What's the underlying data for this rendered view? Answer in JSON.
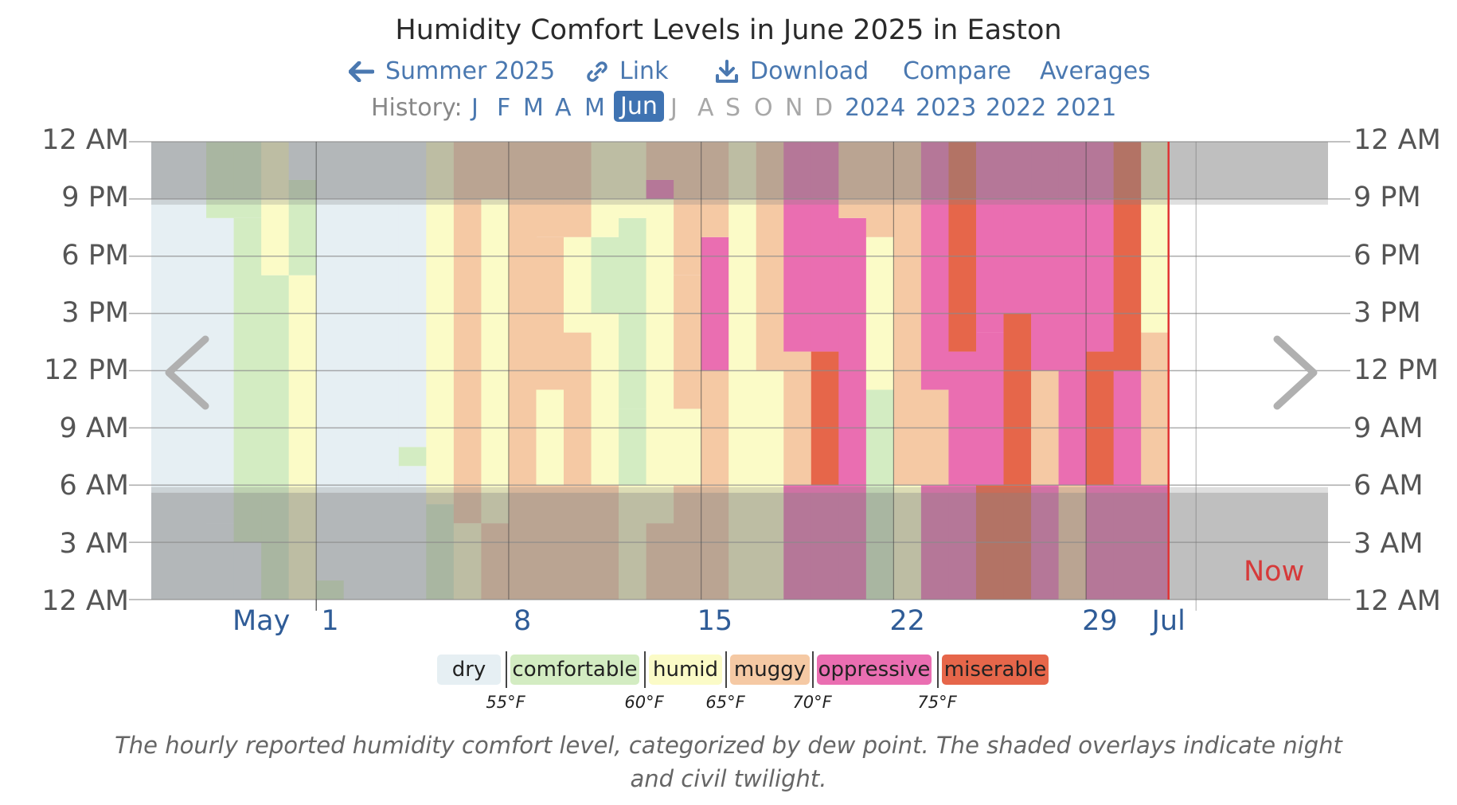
{
  "title": "Humidity Comfort Levels in June 2025 in Easton",
  "nav": [
    {
      "label": "Summer 2025",
      "icon": "arrow-left-icon"
    },
    {
      "label": "Link",
      "icon": "link-icon"
    },
    {
      "label": "Download",
      "icon": "download-icon"
    },
    {
      "label": "Compare",
      "icon": ""
    },
    {
      "label": "Averages",
      "icon": ""
    }
  ],
  "history": {
    "label": "History:",
    "months": [
      {
        "label": "J",
        "state": "link"
      },
      {
        "label": "F",
        "state": "link"
      },
      {
        "label": "M",
        "state": "link"
      },
      {
        "label": "A",
        "state": "link"
      },
      {
        "label": "M",
        "state": "link"
      },
      {
        "label": "Jun",
        "state": "selected"
      },
      {
        "label": "J",
        "state": "disabled"
      },
      {
        "label": "A",
        "state": "disabled"
      },
      {
        "label": "S",
        "state": "disabled"
      },
      {
        "label": "O",
        "state": "disabled"
      },
      {
        "label": "N",
        "state": "disabled"
      },
      {
        "label": "D",
        "state": "disabled"
      }
    ],
    "years": [
      "2024",
      "2023",
      "2022",
      "2021"
    ]
  },
  "chart_data": {
    "type": "heatmap",
    "x_unit": "day",
    "y_unit": "hour of day",
    "y_ticks": [
      "12 AM",
      "9 PM",
      "6 PM",
      "3 PM",
      "12 PM",
      "9 AM",
      "6 AM",
      "3 AM",
      "12 AM"
    ],
    "x_ticks": [
      {
        "label": "May",
        "day": -2.5
      },
      {
        "label": "1",
        "day": 0
      },
      {
        "label": "8",
        "day": 7
      },
      {
        "label": "15",
        "day": 14
      },
      {
        "label": "22",
        "day": 21
      },
      {
        "label": "29",
        "day": 28
      },
      {
        "label": "Jul",
        "day": 30.5
      }
    ],
    "x_range": [
      -6.5,
      36.3
    ],
    "data_range": [
      -6.5,
      31
    ],
    "now_label": "Now",
    "now_day": 30,
    "categories": [
      {
        "name": "dry",
        "color": "#e6eff3"
      },
      {
        "name": "comfortable",
        "color": "#d3ecc2"
      },
      {
        "name": "humid",
        "color": "#fbfbc7"
      },
      {
        "name": "muggy",
        "color": "#f5c9a4"
      },
      {
        "name": "oppressive",
        "color": "#ea6eb1"
      },
      {
        "name": "miserable",
        "color": "#e6664a"
      }
    ],
    "thresholds": [
      "55°F",
      "60°F",
      "65°F",
      "70°F",
      "75°F"
    ],
    "night_color": "#808080",
    "night_end_hour": 5.6,
    "night_start_hour": 21.0,
    "days": [
      {
        "day": -6,
        "blocks": [
          [
            0,
            24,
            0
          ]
        ]
      },
      {
        "day": -5,
        "blocks": [
          [
            0,
            24,
            0
          ]
        ]
      },
      {
        "day": -4,
        "blocks": [
          [
            0,
            4,
            0
          ],
          [
            4,
            20,
            0
          ],
          [
            20,
            24,
            1
          ]
        ]
      },
      {
        "day": -3,
        "blocks": [
          [
            0,
            3,
            0
          ],
          [
            3,
            20,
            1
          ],
          [
            20,
            24,
            1
          ]
        ]
      },
      {
        "day": -2,
        "blocks": [
          [
            0,
            6,
            1
          ],
          [
            6,
            17,
            1
          ],
          [
            17,
            24,
            2
          ]
        ]
      },
      {
        "day": -1,
        "blocks": [
          [
            0,
            6,
            2
          ],
          [
            6,
            17,
            2
          ],
          [
            17,
            22,
            1
          ],
          [
            22,
            24,
            0
          ]
        ]
      },
      {
        "day": 0,
        "blocks": [
          [
            0,
            1,
            1
          ],
          [
            1,
            24,
            0
          ]
        ]
      },
      {
        "day": 1,
        "blocks": [
          [
            0,
            24,
            0
          ]
        ]
      },
      {
        "day": 2,
        "blocks": [
          [
            0,
            24,
            0
          ]
        ]
      },
      {
        "day": 3,
        "blocks": [
          [
            0,
            7,
            0
          ],
          [
            7,
            8,
            1
          ],
          [
            8,
            24,
            0
          ]
        ]
      },
      {
        "day": 4,
        "blocks": [
          [
            0,
            5,
            1
          ],
          [
            5,
            21,
            2
          ],
          [
            21,
            24,
            2
          ]
        ]
      },
      {
        "day": 5,
        "blocks": [
          [
            0,
            4,
            2
          ],
          [
            4,
            21,
            3
          ],
          [
            21,
            24,
            3
          ]
        ]
      },
      {
        "day": 6,
        "blocks": [
          [
            0,
            4,
            3
          ],
          [
            4,
            21,
            2
          ],
          [
            21,
            24,
            3
          ]
        ]
      },
      {
        "day": 7,
        "blocks": [
          [
            0,
            24,
            3
          ]
        ]
      },
      {
        "day": 8,
        "blocks": [
          [
            0,
            6,
            3
          ],
          [
            6,
            11,
            2
          ],
          [
            11,
            19,
            3
          ],
          [
            19,
            24,
            3
          ]
        ]
      },
      {
        "day": 9,
        "blocks": [
          [
            0,
            6,
            3
          ],
          [
            6,
            14,
            3
          ],
          [
            14,
            19,
            2
          ],
          [
            19,
            24,
            3
          ]
        ]
      },
      {
        "day": 10,
        "blocks": [
          [
            0,
            6,
            3
          ],
          [
            6,
            15,
            2
          ],
          [
            15,
            19,
            1
          ],
          [
            19,
            24,
            2
          ]
        ]
      },
      {
        "day": 11,
        "blocks": [
          [
            0,
            6,
            2
          ],
          [
            6,
            10,
            1
          ],
          [
            10,
            20,
            1
          ],
          [
            20,
            24,
            2
          ]
        ]
      },
      {
        "day": 12,
        "blocks": [
          [
            0,
            4,
            3
          ],
          [
            4,
            21,
            2
          ],
          [
            21,
            22,
            4
          ],
          [
            22,
            24,
            3
          ]
        ]
      },
      {
        "day": 13,
        "blocks": [
          [
            0,
            6,
            3
          ],
          [
            6,
            10,
            2
          ],
          [
            10,
            17,
            3
          ],
          [
            17,
            24,
            3
          ]
        ]
      },
      {
        "day": 14,
        "blocks": [
          [
            0,
            6,
            3
          ],
          [
            6,
            12,
            3
          ],
          [
            12,
            19,
            4
          ],
          [
            19,
            24,
            3
          ]
        ]
      },
      {
        "day": 15,
        "blocks": [
          [
            0,
            24,
            2
          ]
        ]
      },
      {
        "day": 16,
        "blocks": [
          [
            0,
            6,
            2
          ],
          [
            6,
            12,
            2
          ],
          [
            12,
            24,
            3
          ]
        ]
      },
      {
        "day": 17,
        "blocks": [
          [
            0,
            6,
            4
          ],
          [
            6,
            13,
            3
          ],
          [
            13,
            24,
            4
          ]
        ]
      },
      {
        "day": 18,
        "blocks": [
          [
            0,
            6,
            4
          ],
          [
            6,
            13,
            5
          ],
          [
            13,
            24,
            4
          ]
        ]
      },
      {
        "day": 19,
        "blocks": [
          [
            0,
            6,
            4
          ],
          [
            6,
            20,
            4
          ],
          [
            20,
            24,
            3
          ]
        ]
      },
      {
        "day": 20,
        "blocks": [
          [
            0,
            6,
            1
          ],
          [
            6,
            11,
            1
          ],
          [
            11,
            19,
            2
          ],
          [
            19,
            24,
            3
          ]
        ]
      },
      {
        "day": 21,
        "blocks": [
          [
            0,
            6,
            2
          ],
          [
            6,
            18,
            3
          ],
          [
            18,
            24,
            3
          ]
        ]
      },
      {
        "day": 22,
        "blocks": [
          [
            0,
            6,
            4
          ],
          [
            6,
            11,
            3
          ],
          [
            11,
            24,
            4
          ]
        ]
      },
      {
        "day": 23,
        "blocks": [
          [
            0,
            6,
            4
          ],
          [
            6,
            13,
            4
          ],
          [
            13,
            24,
            5
          ]
        ]
      },
      {
        "day": 24,
        "blocks": [
          [
            0,
            6,
            5
          ],
          [
            6,
            14,
            4
          ],
          [
            14,
            24,
            4
          ]
        ]
      },
      {
        "day": 25,
        "blocks": [
          [
            0,
            6,
            5
          ],
          [
            6,
            15,
            5
          ],
          [
            15,
            24,
            4
          ]
        ]
      },
      {
        "day": 26,
        "blocks": [
          [
            0,
            6,
            4
          ],
          [
            6,
            12,
            3
          ],
          [
            12,
            24,
            4
          ]
        ]
      },
      {
        "day": 27,
        "blocks": [
          [
            0,
            6,
            3
          ],
          [
            6,
            12,
            4
          ],
          [
            12,
            24,
            4
          ]
        ]
      },
      {
        "day": 28,
        "blocks": [
          [
            0,
            6,
            4
          ],
          [
            6,
            13,
            5
          ],
          [
            13,
            24,
            4
          ]
        ]
      },
      {
        "day": 29,
        "blocks": [
          [
            0,
            6,
            4
          ],
          [
            6,
            12,
            4
          ],
          [
            12,
            24,
            5
          ]
        ]
      },
      {
        "day": 30,
        "blocks": [
          [
            0,
            6,
            4
          ],
          [
            6,
            14,
            3
          ],
          [
            14,
            24,
            2
          ]
        ]
      }
    ]
  },
  "caption": "The hourly reported humidity comfort level, categorized by dew point. The shaded overlays indicate night and civil twilight."
}
